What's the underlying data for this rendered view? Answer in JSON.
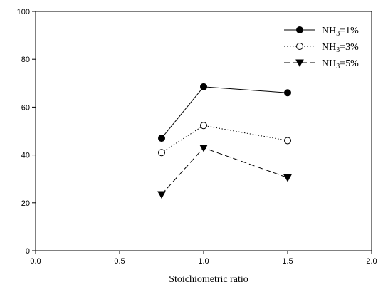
{
  "chart_data": {
    "type": "line",
    "title": "",
    "xlabel": "Stoichiometric ratio",
    "ylabel": "",
    "xlim": [
      0.0,
      2.0
    ],
    "ylim": [
      0,
      100
    ],
    "xticks": [
      0.0,
      0.5,
      1.0,
      1.5,
      2.0
    ],
    "xtick_labels": [
      "0.0",
      "0.5",
      "1.0",
      "1.5",
      "2.0"
    ],
    "yticks": [
      0,
      20,
      40,
      60,
      80,
      100
    ],
    "ytick_labels": [
      "0",
      "20",
      "40",
      "60",
      "80",
      "100"
    ],
    "grid": false,
    "legend_position": "top-right",
    "series": [
      {
        "name": "NH3=1%",
        "name_prefix": "NH",
        "name_sub": "3",
        "name_suffix": "=1%",
        "marker": "filled-circle",
        "line": "solid",
        "x": [
          0.75,
          1.0,
          1.5
        ],
        "y": [
          47,
          68.5,
          66
        ]
      },
      {
        "name": "NH3=3%",
        "name_prefix": "NH",
        "name_sub": "3",
        "name_suffix": "=3%",
        "marker": "open-circle",
        "line": "dotted",
        "x": [
          0.75,
          1.0,
          1.5
        ],
        "y": [
          41,
          52.3,
          46
        ]
      },
      {
        "name": "NH3=5%",
        "name_prefix": "NH",
        "name_sub": "3",
        "name_suffix": "=5%",
        "marker": "filled-triangle-down",
        "line": "dashed",
        "x": [
          0.75,
          1.0,
          1.5
        ],
        "y": [
          23.5,
          43,
          30.5
        ]
      }
    ]
  }
}
